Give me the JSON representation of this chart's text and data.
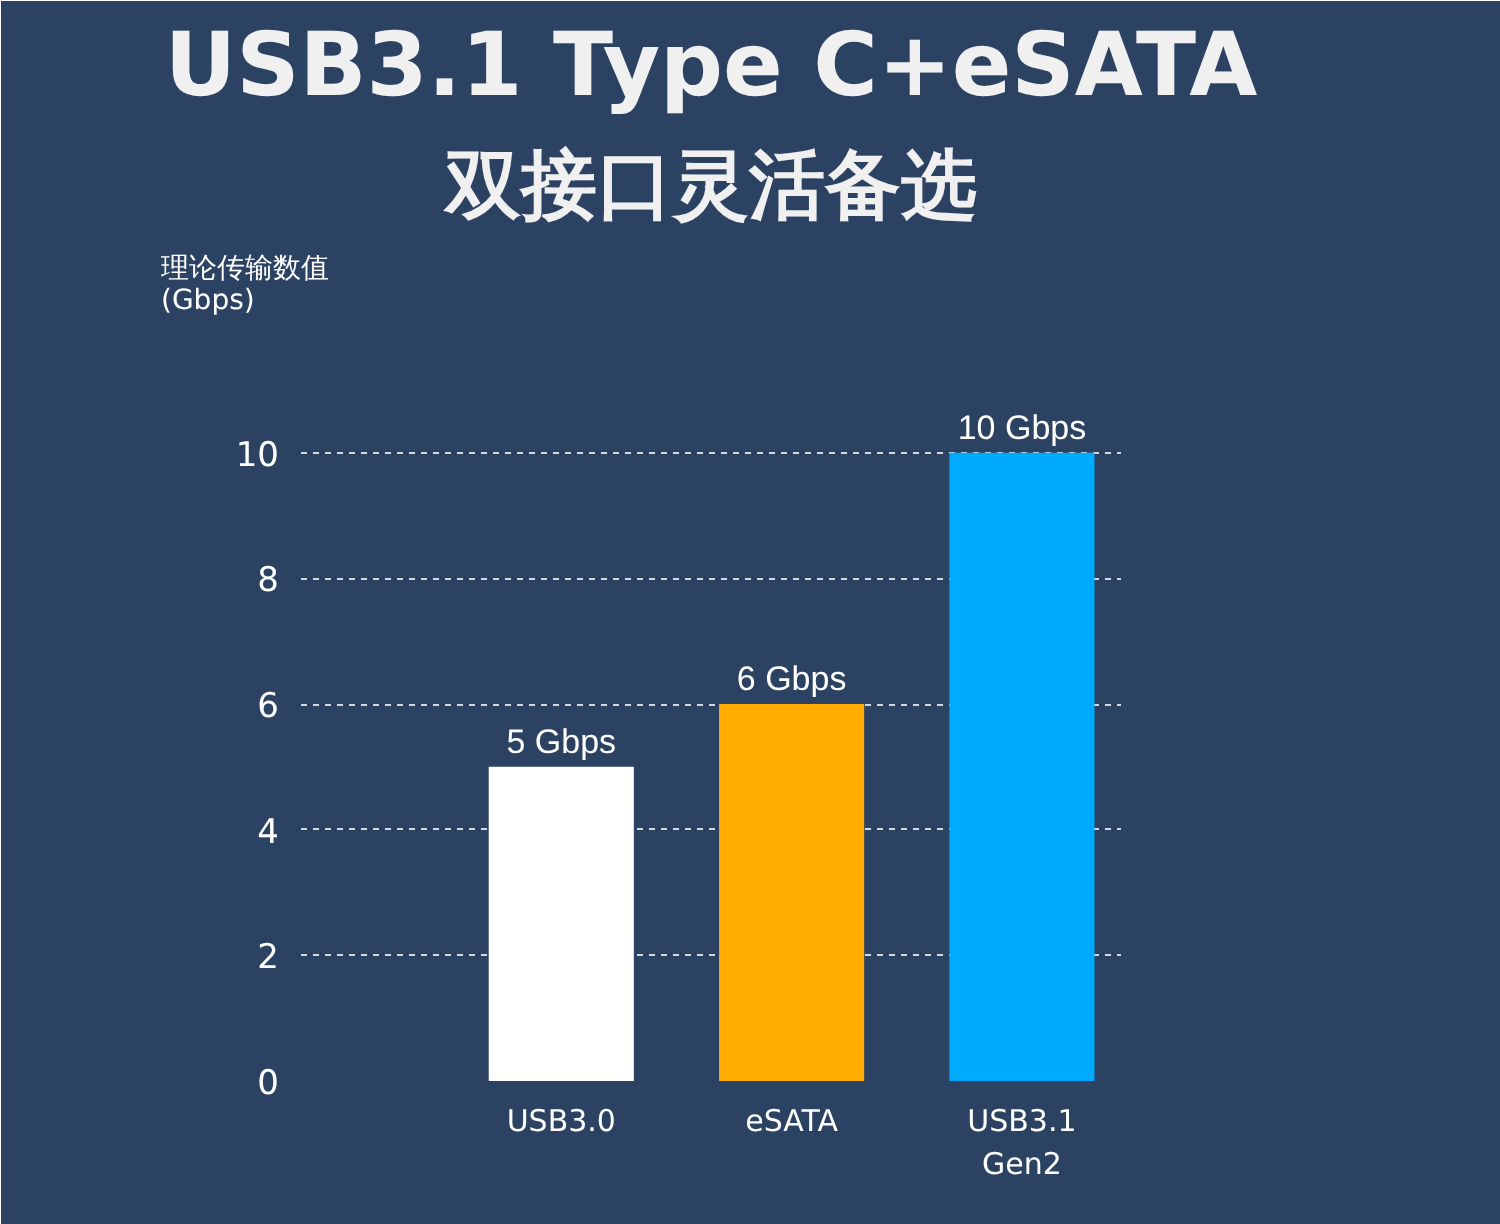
{
  "chart_data": {
    "type": "bar",
    "title": "USB3.1 Type C+eSATA",
    "subtitle": "双接口灵活备选",
    "ylabel": "理论传输数值\n(Gbps)",
    "categories": [
      "USB3.0",
      "eSATA",
      "USB3.1\nGen2"
    ],
    "values": [
      5,
      6,
      10
    ],
    "colors": [
      "#ffffff",
      "#ffab00",
      "#00aaff"
    ],
    "value_labels": [
      "5 Gbps",
      "6 Gbps",
      "10 Gbps"
    ],
    "ylim": [
      0,
      12
    ],
    "yticks": [
      0,
      2,
      4,
      6,
      8,
      10
    ],
    "grid": "y"
  }
}
